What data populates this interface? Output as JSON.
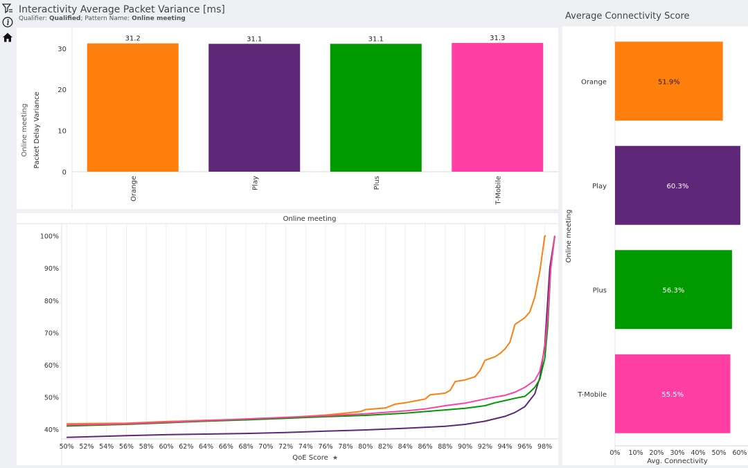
{
  "header": {
    "title": "Interactivity Average Packet Variance [ms]",
    "qualifier_label": "Qualifier:",
    "qualifier_value": "Qualified",
    "pattern_label": "; Pattern Name:",
    "pattern_value": "Online meeting"
  },
  "toolbar": {
    "icons": [
      "filter-icon",
      "info-icon",
      "home-icon"
    ]
  },
  "colors": {
    "Orange": "#ff7f0e",
    "Play": "#5e2777",
    "Plus": "#009900",
    "T-Mobile": "#ff3fa4"
  },
  "right_panel": {
    "title": "Average Connectivity Score"
  },
  "chart_data": [
    {
      "type": "bar",
      "ylabel_outer": "Online meeting",
      "ylabel": "Packet Delay Variance",
      "categories": [
        "Orange",
        "Play",
        "Plus",
        "T-Mobile"
      ],
      "values": [
        31.2,
        31.1,
        31.1,
        31.3
      ],
      "value_labels": [
        "31.2",
        "31.1",
        "31.1",
        "31.3"
      ],
      "ylim": [
        0,
        33
      ],
      "yticks": [
        0,
        10,
        20,
        30
      ]
    },
    {
      "type": "line",
      "title": "Online meeting",
      "xlabel": "QoE Score",
      "xlim": [
        49.5,
        99
      ],
      "ylim": [
        37,
        101
      ],
      "xticks": [
        "50%",
        "52%",
        "54%",
        "56%",
        "58%",
        "60%",
        "62%",
        "64%",
        "66%",
        "68%",
        "70%",
        "72%",
        "74%",
        "76%",
        "78%",
        "80%",
        "82%",
        "84%",
        "86%",
        "88%",
        "90%",
        "92%",
        "94%",
        "96%",
        "98%"
      ],
      "xtick_values": [
        50,
        52,
        54,
        56,
        58,
        60,
        62,
        64,
        66,
        68,
        70,
        72,
        74,
        76,
        78,
        80,
        82,
        84,
        86,
        88,
        90,
        92,
        94,
        96,
        98
      ],
      "yticks": [
        "40%",
        "50%",
        "60%",
        "70%",
        "80%",
        "90%",
        "100%"
      ],
      "ytick_values": [
        40,
        50,
        60,
        70,
        80,
        90,
        100
      ],
      "series": [
        {
          "name": "Orange",
          "x": [
            50,
            56,
            60,
            64,
            68,
            72,
            76,
            78,
            79.5,
            80,
            82,
            83,
            84,
            85,
            86,
            86.5,
            88,
            88.5,
            89,
            90,
            91,
            91.5,
            92,
            93,
            93.5,
            94,
            94.5,
            95,
            96,
            96.5,
            97,
            97.5,
            98,
            98.1
          ],
          "y": [
            41.7,
            41.9,
            42.4,
            42.8,
            43.1,
            43.6,
            44.4,
            45,
            45.5,
            46.1,
            46.6,
            47.8,
            48.2,
            48.8,
            49.4,
            50.7,
            51.2,
            52.1,
            54.8,
            55.3,
            56.3,
            58.2,
            61.4,
            62.5,
            63.5,
            64.9,
            67,
            72.5,
            74.6,
            76.4,
            81,
            89,
            100,
            100
          ]
        },
        {
          "name": "Play",
          "x": [
            50,
            56,
            60,
            64,
            68,
            72,
            76,
            80,
            84,
            88,
            90,
            92,
            94,
            95,
            96,
            97,
            97.5,
            98,
            98.5,
            99
          ],
          "y": [
            37.5,
            38,
            38.3,
            38.5,
            38.7,
            39,
            39.4,
            39.8,
            40.3,
            40.9,
            41.5,
            42.5,
            44,
            45.2,
            47,
            51,
            56,
            66,
            90,
            100
          ]
        },
        {
          "name": "Plus",
          "x": [
            50,
            56,
            60,
            64,
            68,
            72,
            76,
            80,
            84,
            88,
            90,
            92,
            93,
            94,
            95,
            96,
            96.5,
            97,
            97.5,
            98,
            98.3,
            98.6,
            99
          ],
          "y": [
            41,
            41.5,
            42,
            42.5,
            42.9,
            43.4,
            43.9,
            44.3,
            45,
            46,
            46.5,
            47.3,
            48.2,
            48.9,
            49.6,
            50.2,
            51.5,
            53,
            55.5,
            62,
            72,
            90,
            100
          ]
        },
        {
          "name": "T-Mobile",
          "x": [
            50,
            56,
            60,
            64,
            68,
            72,
            76,
            80,
            84,
            86,
            88,
            90,
            92,
            93,
            94,
            95,
            96,
            97,
            97.5,
            98,
            98.3,
            98.6,
            99
          ],
          "y": [
            41.3,
            41.7,
            42.2,
            42.7,
            43.2,
            43.7,
            44.2,
            44.8,
            45.7,
            46.3,
            47.3,
            48.1,
            49.4,
            50,
            50.5,
            51.5,
            53,
            55.2,
            58,
            65,
            75,
            90,
            100
          ]
        }
      ]
    },
    {
      "type": "bar",
      "orientation": "horizontal",
      "title": "Average Connectivity Score",
      "ylabel": "Online meeting",
      "xlabel": "Avg. Connectivity",
      "categories": [
        "Orange",
        "Play",
        "Plus",
        "T-Mobile"
      ],
      "values": [
        51.9,
        60.3,
        56.3,
        55.5
      ],
      "value_labels": [
        "51.9%",
        "60.3%",
        "56.3%",
        "55.5%"
      ],
      "xlim": [
        0,
        60
      ],
      "xticks": [
        "0%",
        "10%",
        "20%",
        "30%",
        "40%",
        "50%",
        "60%"
      ],
      "xtick_values": [
        0,
        10,
        20,
        30,
        40,
        50,
        60
      ]
    }
  ]
}
